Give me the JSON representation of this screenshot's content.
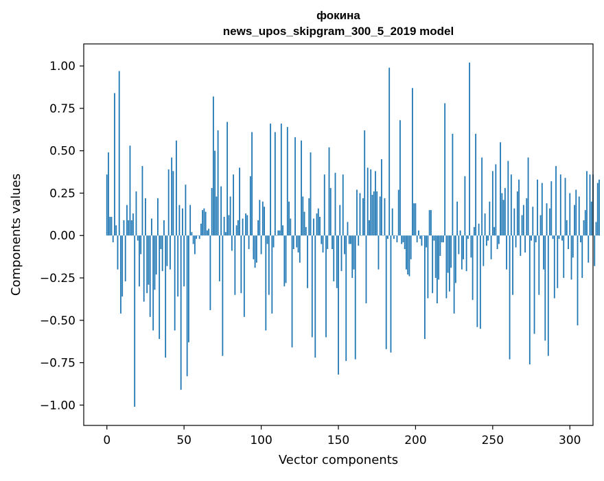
{
  "chart_data": {
    "type": "bar",
    "title_line1": "фокина",
    "title_line2": "news_upos_skipgram_300_5_2019 model",
    "xlabel": "Vector components",
    "ylabel": "Components values",
    "xlim": [
      -15,
      315
    ],
    "ylim": [
      -1.12,
      1.13
    ],
    "xticks": [
      0,
      50,
      100,
      150,
      200,
      250,
      300
    ],
    "xtick_labels": [
      "0",
      "50",
      "100",
      "150",
      "200",
      "250",
      "300"
    ],
    "yticks": [
      1.0,
      0.75,
      0.5,
      0.25,
      0.0,
      -0.25,
      -0.5,
      -0.75,
      -1.0
    ],
    "ytick_labels": [
      "1.00",
      "0.75",
      "0.50",
      "0.25",
      "0.00",
      "−0.25",
      "−0.50",
      "−0.75",
      "−1.00"
    ],
    "bar_color": "#1f77b4",
    "grid": false,
    "values": [
      0.36,
      0.49,
      0.11,
      0.11,
      -0.04,
      0.84,
      0.06,
      -0.2,
      0.97,
      -0.46,
      -0.36,
      0.09,
      -0.27,
      0.18,
      0.09,
      0.53,
      0.09,
      0.13,
      -1.01,
      0.26,
      -0.03,
      -0.3,
      -0.11,
      0.41,
      -0.39,
      0.22,
      -0.34,
      -0.29,
      -0.48,
      0.1,
      -0.56,
      -0.32,
      -0.23,
      0.22,
      -0.61,
      -0.08,
      -0.21,
      0.09,
      -0.72,
      -0.18,
      0.39,
      -0.2,
      0.46,
      0.38,
      -0.56,
      0.56,
      -0.36,
      0.18,
      -0.91,
      0.16,
      -0.3,
      0.3,
      -0.83,
      -0.63,
      0.18,
      0.02,
      -0.05,
      -0.11,
      -0.02,
      0.0,
      -0.02,
      0.07,
      0.15,
      0.16,
      0.14,
      0.03,
      0.04,
      -0.44,
      0.28,
      0.82,
      0.5,
      0.23,
      0.62,
      -0.27,
      0.29,
      -0.71,
      0.11,
      0.02,
      0.67,
      0.12,
      0.23,
      -0.09,
      0.36,
      -0.35,
      0.06,
      0.09,
      0.4,
      -0.34,
      0.1,
      -0.48,
      0.13,
      0.12,
      -0.08,
      0.35,
      0.61,
      -0.14,
      -0.19,
      -0.16,
      0.09,
      0.21,
      -0.11,
      0.2,
      0.17,
      -0.56,
      -0.05,
      -0.35,
      0.66,
      -0.46,
      -0.07,
      0.61,
      0.0,
      0.03,
      0.03,
      0.66,
      0.06,
      -0.3,
      -0.28,
      0.64,
      0.2,
      0.1,
      -0.66,
      -0.08,
      0.58,
      -0.07,
      -0.1,
      -0.16,
      0.56,
      0.23,
      0.14,
      0.05,
      -0.31,
      0.22,
      0.49,
      -0.6,
      0.1,
      -0.72,
      0.13,
      0.16,
      0.11,
      -0.05,
      -0.1,
      0.36,
      -0.6,
      -0.08,
      0.52,
      0.28,
      -0.08,
      -0.27,
      0.37,
      -0.31,
      -0.82,
      0.18,
      -0.21,
      0.36,
      -0.11,
      -0.74,
      0.08,
      -0.05,
      -0.05,
      -0.25,
      -0.2,
      -0.73,
      0.27,
      -0.06,
      0.25,
      0.0,
      0.22,
      0.62,
      -0.4,
      0.4,
      0.09,
      0.39,
      0.24,
      0.26,
      0.38,
      0.26,
      -0.2,
      0.23,
      0.45,
      0.0,
      0.22,
      -0.67,
      -0.02,
      0.99,
      -0.69,
      0.16,
      -0.02,
      0.0,
      -0.04,
      0.27,
      0.68,
      -0.05,
      -0.04,
      -0.08,
      -0.2,
      -0.23,
      -0.24,
      -0.14,
      0.87,
      0.19,
      0.19,
      -0.04,
      0.03,
      -0.02,
      -0.06,
      0.0,
      -0.61,
      -0.07,
      -0.37,
      0.15,
      0.15,
      -0.34,
      -0.03,
      -0.25,
      -0.4,
      -0.26,
      -0.12,
      -0.04,
      -0.04,
      0.78,
      -0.37,
      -0.22,
      -0.33,
      -0.19,
      0.6,
      -0.46,
      -0.28,
      0.2,
      -0.11,
      0.03,
      -0.2,
      -0.14,
      0.35,
      -0.21,
      -0.02,
      1.02,
      -0.13,
      -0.38,
      0.05,
      0.6,
      -0.54,
      0.07,
      -0.55,
      0.46,
      -0.18,
      0.13,
      -0.06,
      -0.03,
      0.2,
      -0.14,
      0.38,
      0.05,
      0.42,
      -0.08,
      -0.05,
      0.55,
      0.25,
      0.21,
      0.28,
      -0.2,
      0.44,
      -0.73,
      0.36,
      -0.35,
      0.16,
      -0.07,
      0.26,
      0.33,
      -0.12,
      0.12,
      0.18,
      -0.1,
      0.22,
      0.46,
      -0.76,
      -0.03,
      0.17,
      -0.58,
      -0.04,
      0.33,
      -0.35,
      0.12,
      0.31,
      -0.2,
      -0.62,
      0.19,
      -0.71,
      0.16,
      0.32,
      -0.02,
      -0.37,
      0.41,
      -0.31,
      -0.02,
      0.36,
      -0.03,
      -0.25,
      0.34,
      0.09,
      -0.08,
      0.25,
      -0.26,
      -0.13,
      0.18,
      0.27,
      -0.53,
      0.23,
      -0.04,
      -0.25,
      0.09,
      0.15,
      0.38,
      -0.16,
      0.36,
      0.2,
      0.36,
      -0.18,
      0.08,
      0.31,
      0.33
    ]
  }
}
